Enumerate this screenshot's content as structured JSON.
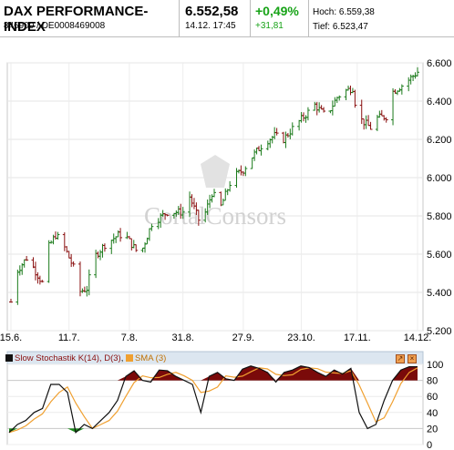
{
  "header": {
    "name": "DAX PERFORMANCE-INDEX",
    "ids": "846900  /  DE0008469008",
    "last": "6.552,58",
    "datetime": "14.12.  17:45",
    "change_pct": "+0,49%",
    "change_abs": "+31,81",
    "high": "Hoch: 6.559,38",
    "low": "Tief: 6.523,47"
  },
  "watermark": "CortalConsors",
  "oscillator": {
    "title": "Slow Stochastik K(14), D(3)",
    "sma_label": "SMA (3)",
    "colors": {
      "k_swatch": "#111111",
      "sma_swatch": "#f0a030",
      "fill_above": "#7a0a0a",
      "fill_below": "#1a8a1a",
      "panel_bg": "#dce6f0"
    }
  },
  "chart_data": [
    {
      "type": "ohlc",
      "title": "DAX PERFORMANCE-INDEX",
      "x_tick_labels": [
        "15.6.",
        "11.7.",
        "7.8.",
        "31.8.",
        "27.9.",
        "23.10.",
        "17.11.",
        "14.12."
      ],
      "y_tick_labels": [
        "6.600",
        "6.400",
        "6.200",
        "6.000",
        "5.800",
        "5.600",
        "5.400",
        "5.200"
      ],
      "ylim": [
        5200,
        6600
      ],
      "colors": {
        "up": "#1a7a1a",
        "down": "#8a1010"
      },
      "anchor_closes": [
        [
          "15.6.",
          5350
        ],
        [
          "17.6.",
          5500
        ],
        [
          "22.6.",
          5580
        ],
        [
          "25.6.",
          5530
        ],
        [
          "29.6.",
          5450
        ],
        [
          "1.7.",
          5620
        ],
        [
          "5.7.",
          5700
        ],
        [
          "8.7.",
          5660
        ],
        [
          "13.7.",
          5530
        ],
        [
          "15.7.",
          5400
        ],
        [
          "19.7.",
          5420
        ],
        [
          "22.7.",
          5580
        ],
        [
          "27.7.",
          5650
        ],
        [
          "2.8.",
          5700
        ],
        [
          "5.8.",
          5700
        ],
        [
          "10.8.",
          5620
        ],
        [
          "12.8.",
          5600
        ],
        [
          "17.8.",
          5760
        ],
        [
          "24.8.",
          5820
        ],
        [
          "31.8.",
          5820
        ],
        [
          "3.9.",
          5900
        ],
        [
          "8.9.",
          5750
        ],
        [
          "13.9.",
          5920
        ],
        [
          "17.9.",
          5850
        ],
        [
          "22.9.",
          6000
        ],
        [
          "27.9.",
          6040
        ],
        [
          "1.10.",
          6110
        ],
        [
          "6.10.",
          6180
        ],
        [
          "11.10.",
          6220
        ],
        [
          "15.10.",
          6200
        ],
        [
          "20.10.",
          6270
        ],
        [
          "25.10.",
          6330
        ],
        [
          "29.10.",
          6380
        ],
        [
          "3.11.",
          6320
        ],
        [
          "8.11.",
          6420
        ],
        [
          "11.11.",
          6450
        ],
        [
          "15.11.",
          6470
        ],
        [
          "17.11.",
          6320
        ],
        [
          "23.11.",
          6260
        ],
        [
          "25.11.",
          6310
        ],
        [
          "30.11.",
          6320
        ],
        [
          "3.12.",
          6450
        ],
        [
          "8.12.",
          6490
        ],
        [
          "14.12.",
          6552.58
        ]
      ]
    },
    {
      "type": "line",
      "title": "Slow Stochastik K(14), D(3)",
      "y_tick_labels": [
        "100",
        "80",
        "60",
        "40",
        "20",
        "0"
      ],
      "ylim": [
        0,
        100
      ],
      "series": [
        {
          "name": "Slow Stochastik K(14), D(3)",
          "values": [
            15,
            25,
            30,
            40,
            45,
            75,
            75,
            65,
            15,
            25,
            20,
            30,
            40,
            55,
            85,
            92,
            80,
            78,
            93,
            92,
            85,
            80,
            75,
            40,
            85,
            90,
            82,
            80,
            94,
            98,
            95,
            90,
            78,
            90,
            93,
            98,
            96,
            90,
            85,
            93,
            88,
            95,
            40,
            20,
            25,
            55,
            80,
            93,
            97,
            97
          ]
        },
        {
          "name": "SMA (3)"
        }
      ]
    }
  ]
}
